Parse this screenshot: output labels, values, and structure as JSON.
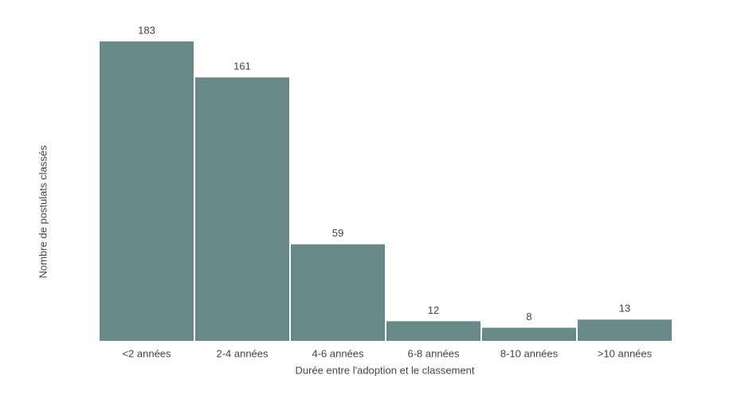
{
  "chart_data": {
    "type": "bar",
    "categories": [
      "<2 années",
      "2-4 années",
      "4-6 années",
      "6-8 années",
      "8-10 années",
      ">10 années"
    ],
    "values": [
      183,
      161,
      59,
      12,
      8,
      13
    ],
    "color": "#698888",
    "x_label": "Durée entre l'adoption et le classement",
    "y_label": "Nombre de postulats classés",
    "ylim": [
      0,
      183
    ]
  }
}
